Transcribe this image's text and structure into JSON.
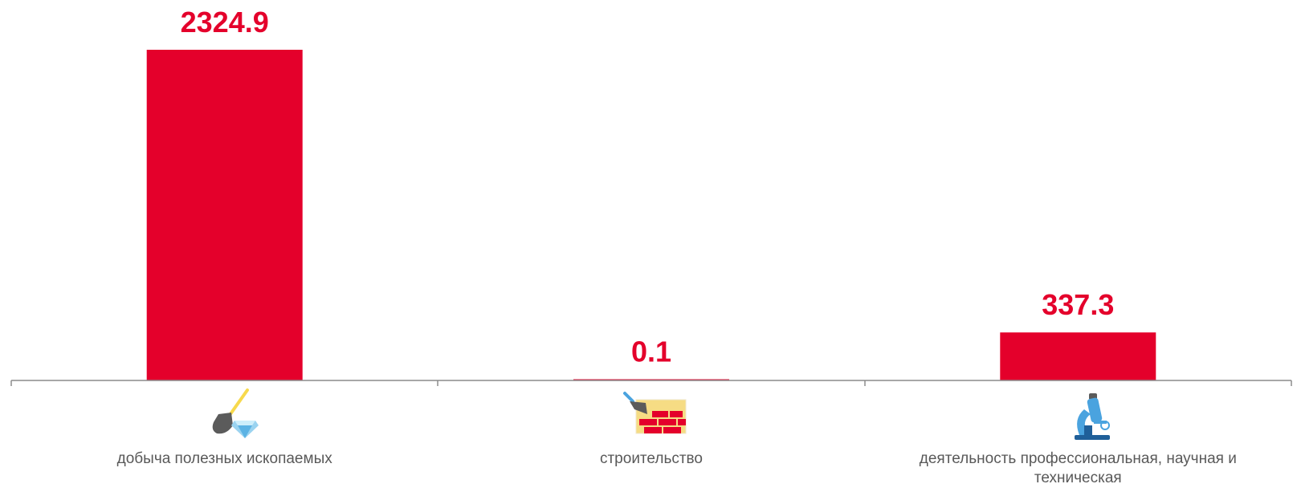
{
  "colors": {
    "bar": "#e4002b",
    "axis": "#8c8c8c",
    "label": "#595959"
  },
  "chart_data": {
    "type": "bar",
    "title": "",
    "xlabel": "",
    "ylabel": "",
    "ylim": [
      0,
      2324.9
    ],
    "grid": false,
    "legend": "none",
    "categories": [
      "добыча полезных ископаемых",
      "строительство",
      "деятельность профессиональная, научная и техническая"
    ],
    "values": [
      2324.9,
      0.1,
      337.3
    ],
    "value_labels": [
      "2324.9",
      "0.1",
      "337.3"
    ],
    "icons": [
      "shovel-diamond-icon",
      "trowel-brick-wall-icon",
      "microscope-icon"
    ]
  }
}
